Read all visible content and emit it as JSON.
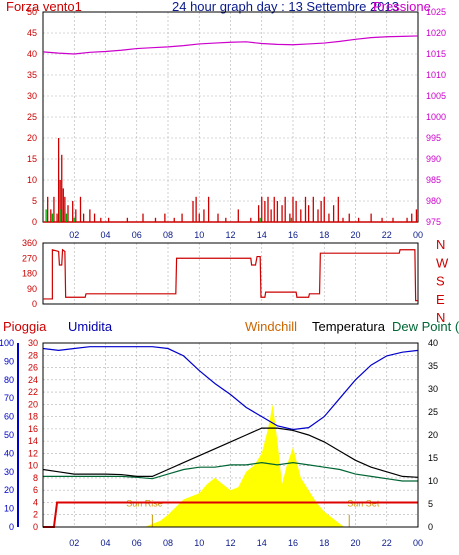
{
  "header": {
    "wind_label": "Forza vento1",
    "title": "24 hour graph day : 13 Settembre 2013",
    "pressure_label": "Pressione"
  },
  "legend": {
    "rain": "Pioggia",
    "humidity": "Umidita",
    "windchill": "Windchill",
    "temperature": "Temperatura",
    "dewpoint": "Dew Point (°C"
  },
  "markers": {
    "sunrise": "Sun Rise",
    "sunset": "Sun Set"
  },
  "colors": {
    "wind": "#cc0000",
    "gust": "#00aa00",
    "pressure": "#cc00cc",
    "humidity": "#0000cc",
    "temperature": "#000000",
    "dewpoint": "#006633",
    "windchill": "#cc6600",
    "rain": "#dd0000",
    "solar": "#ffff00",
    "grid": "#b0b0b0",
    "axis_dark": "#0a1a8a"
  },
  "chart_data": [
    {
      "type": "bar",
      "name": "wind",
      "x_ticks": [
        "02",
        "04",
        "06",
        "08",
        "10",
        "12",
        "14",
        "16",
        "18",
        "20",
        "22",
        "00"
      ],
      "xlim": [
        0,
        24
      ],
      "ylim_left": [
        0,
        50
      ],
      "yticks_left": [
        0,
        5,
        10,
        15,
        20,
        25,
        30,
        35,
        40,
        45,
        50
      ],
      "ylim_right": [
        975,
        1025
      ],
      "yticks_right": [
        975,
        980,
        985,
        990,
        995,
        1000,
        1005,
        1010,
        1015,
        1020,
        1025
      ],
      "wind_bars": [
        [
          0.3,
          6
        ],
        [
          0.5,
          3
        ],
        [
          0.7,
          6
        ],
        [
          0.9,
          2
        ],
        [
          1.0,
          20
        ],
        [
          1.1,
          10
        ],
        [
          1.2,
          16
        ],
        [
          1.3,
          8
        ],
        [
          1.4,
          6
        ],
        [
          1.6,
          4
        ],
        [
          1.9,
          5
        ],
        [
          2.1,
          3
        ],
        [
          2.4,
          6
        ],
        [
          2.6,
          2
        ],
        [
          3.0,
          3
        ],
        [
          3.3,
          2
        ],
        [
          3.7,
          1
        ],
        [
          4.2,
          1
        ],
        [
          5.4,
          1
        ],
        [
          6.4,
          2
        ],
        [
          7.2,
          1
        ],
        [
          7.8,
          2
        ],
        [
          8.4,
          1
        ],
        [
          8.9,
          2
        ],
        [
          9.6,
          5
        ],
        [
          9.8,
          6
        ],
        [
          10.0,
          2
        ],
        [
          10.3,
          3
        ],
        [
          10.6,
          6
        ],
        [
          11.2,
          2
        ],
        [
          11.7,
          1
        ],
        [
          12.5,
          3
        ],
        [
          13.3,
          1
        ],
        [
          13.8,
          4
        ],
        [
          14.0,
          6
        ],
        [
          14.2,
          5
        ],
        [
          14.4,
          6
        ],
        [
          14.6,
          3
        ],
        [
          14.8,
          6
        ],
        [
          15.0,
          5
        ],
        [
          15.3,
          4
        ],
        [
          15.5,
          6
        ],
        [
          15.8,
          2
        ],
        [
          16.0,
          6
        ],
        [
          16.2,
          5
        ],
        [
          16.5,
          3
        ],
        [
          16.8,
          6
        ],
        [
          17.0,
          4
        ],
        [
          17.3,
          6
        ],
        [
          17.6,
          3
        ],
        [
          17.8,
          5
        ],
        [
          18.0,
          6
        ],
        [
          18.3,
          2
        ],
        [
          18.6,
          4
        ],
        [
          18.9,
          6
        ],
        [
          19.2,
          1
        ],
        [
          19.6,
          2
        ],
        [
          20.2,
          1
        ],
        [
          21.0,
          2
        ],
        [
          21.7,
          1
        ],
        [
          22.4,
          1
        ],
        [
          23.3,
          1
        ],
        [
          23.6,
          2
        ],
        [
          23.9,
          3
        ]
      ],
      "gust_bars": [
        [
          0.2,
          3
        ],
        [
          0.6,
          2
        ],
        [
          1.1,
          3
        ],
        [
          1.5,
          2
        ],
        [
          2.0,
          1
        ],
        [
          13.9,
          1
        ],
        [
          15.9,
          1
        ]
      ],
      "pressure": [
        [
          0,
          1015.5
        ],
        [
          1,
          1015.2
        ],
        [
          2,
          1015.0
        ],
        [
          3,
          1015.4
        ],
        [
          4,
          1015.6
        ],
        [
          5,
          1015.9
        ],
        [
          6,
          1016.3
        ],
        [
          7,
          1016.5
        ],
        [
          8,
          1016.7
        ],
        [
          9,
          1017.0
        ],
        [
          10,
          1017.4
        ],
        [
          11,
          1017.6
        ],
        [
          12,
          1017.8
        ],
        [
          13,
          1017.9
        ],
        [
          14,
          1017.5
        ],
        [
          15,
          1017.3
        ],
        [
          16,
          1017.2
        ],
        [
          17,
          1017.4
        ],
        [
          18,
          1017.6
        ],
        [
          19,
          1018.0
        ],
        [
          20,
          1018.5
        ],
        [
          21,
          1018.9
        ],
        [
          22,
          1019.1
        ],
        [
          23,
          1019.2
        ],
        [
          24,
          1019.3
        ]
      ]
    },
    {
      "type": "line",
      "name": "wind_direction",
      "xlim": [
        0,
        24
      ],
      "ylim_left": [
        0,
        360
      ],
      "yticks_left": [
        0,
        30,
        60,
        90,
        120,
        150,
        180,
        210,
        240,
        270,
        300,
        330,
        360
      ],
      "right_labels": [
        "N",
        "W",
        "S",
        "E",
        "N"
      ],
      "direction": [
        [
          0,
          30
        ],
        [
          0.6,
          30
        ],
        [
          0.6,
          320
        ],
        [
          1.0,
          310
        ],
        [
          1.05,
          230
        ],
        [
          1.2,
          230
        ],
        [
          1.25,
          320
        ],
        [
          1.4,
          310
        ],
        [
          1.45,
          40
        ],
        [
          2.0,
          40
        ],
        [
          2.7,
          40
        ],
        [
          2.75,
          60
        ],
        [
          8.5,
          60
        ],
        [
          8.55,
          270
        ],
        [
          13.3,
          270
        ],
        [
          13.35,
          230
        ],
        [
          13.6,
          230
        ],
        [
          13.7,
          280
        ],
        [
          13.9,
          280
        ],
        [
          13.95,
          40
        ],
        [
          14.2,
          40
        ],
        [
          14.25,
          70
        ],
        [
          16.2,
          70
        ],
        [
          16.25,
          40
        ],
        [
          17.0,
          40
        ],
        [
          17.05,
          60
        ],
        [
          17.7,
          60
        ],
        [
          17.75,
          300
        ],
        [
          22.8,
          300
        ],
        [
          22.85,
          320
        ],
        [
          23.8,
          320
        ],
        [
          23.85,
          20
        ],
        [
          24,
          20
        ]
      ]
    },
    {
      "type": "line",
      "name": "temperature_humidity",
      "xlim": [
        0,
        24
      ],
      "ylim_left": [
        0,
        100
      ],
      "yticks_left": [
        0,
        10,
        20,
        30,
        40,
        50,
        60,
        70,
        80,
        90,
        100
      ],
      "ylim_mid": [
        0,
        30
      ],
      "yticks_mid": [
        0,
        2,
        4,
        6,
        8,
        10,
        12,
        14,
        16,
        18,
        20,
        22,
        24,
        26,
        28,
        30
      ],
      "ylim_right": [
        0,
        40
      ],
      "yticks_right": [
        0,
        5,
        10,
        15,
        20,
        25,
        30,
        35,
        40
      ],
      "humidity": [
        [
          0,
          97
        ],
        [
          1,
          96
        ],
        [
          2,
          97
        ],
        [
          3,
          98
        ],
        [
          4,
          98
        ],
        [
          5,
          98
        ],
        [
          6,
          98
        ],
        [
          7,
          98
        ],
        [
          8,
          97
        ],
        [
          9,
          93
        ],
        [
          10,
          85
        ],
        [
          11,
          78
        ],
        [
          12,
          72
        ],
        [
          13,
          65
        ],
        [
          14,
          60
        ],
        [
          15,
          55
        ],
        [
          16,
          53
        ],
        [
          17,
          54
        ],
        [
          18,
          60
        ],
        [
          19,
          70
        ],
        [
          20,
          80
        ],
        [
          21,
          88
        ],
        [
          22,
          93
        ],
        [
          23,
          95
        ],
        [
          24,
          96
        ]
      ],
      "temperature": [
        [
          0,
          12.5
        ],
        [
          1,
          12
        ],
        [
          2,
          11.5
        ],
        [
          3,
          11.5
        ],
        [
          4,
          11.5
        ],
        [
          5,
          11.4
        ],
        [
          6,
          11
        ],
        [
          7,
          11
        ],
        [
          8,
          12.5
        ],
        [
          9,
          14
        ],
        [
          10,
          15.5
        ],
        [
          11,
          17
        ],
        [
          12,
          18.5
        ],
        [
          13,
          20
        ],
        [
          14,
          21.5
        ],
        [
          15,
          21.5
        ],
        [
          16,
          21
        ],
        [
          17,
          20
        ],
        [
          18,
          18.5
        ],
        [
          19,
          16.5
        ],
        [
          20,
          14.5
        ],
        [
          21,
          13
        ],
        [
          22,
          12
        ],
        [
          23,
          11
        ],
        [
          24,
          10.8
        ]
      ],
      "dewpoint": [
        [
          0,
          11
        ],
        [
          1,
          11
        ],
        [
          2,
          11
        ],
        [
          3,
          11
        ],
        [
          4,
          11
        ],
        [
          5,
          11
        ],
        [
          6,
          10.8
        ],
        [
          7,
          10.5
        ],
        [
          8,
          11.5
        ],
        [
          9,
          12.5
        ],
        [
          10,
          13
        ],
        [
          11,
          13
        ],
        [
          12,
          13.5
        ],
        [
          13,
          13.5
        ],
        [
          14,
          14
        ],
        [
          15,
          13.5
        ],
        [
          16,
          14
        ],
        [
          17,
          13.5
        ],
        [
          18,
          13
        ],
        [
          19,
          12.5
        ],
        [
          20,
          11.5
        ],
        [
          21,
          11
        ],
        [
          22,
          10.5
        ],
        [
          23,
          10
        ],
        [
          24,
          10
        ]
      ],
      "rain": [
        [
          0,
          0
        ],
        [
          0.7,
          0
        ],
        [
          0.9,
          4
        ],
        [
          24,
          4
        ]
      ],
      "solar": [
        [
          0,
          0
        ],
        [
          6.5,
          0
        ],
        [
          7,
          0.5
        ],
        [
          7.5,
          1
        ],
        [
          8,
          2
        ],
        [
          9,
          4.5
        ],
        [
          9.5,
          5
        ],
        [
          10,
          5.5
        ],
        [
          10.5,
          7
        ],
        [
          11,
          8
        ],
        [
          11.5,
          7
        ],
        [
          12,
          6
        ],
        [
          12.5,
          6.5
        ],
        [
          13,
          9
        ],
        [
          13.5,
          10
        ],
        [
          14,
          12
        ],
        [
          14.4,
          16
        ],
        [
          14.7,
          20
        ],
        [
          15,
          14
        ],
        [
          15.3,
          7
        ],
        [
          15.6,
          10
        ],
        [
          16,
          13
        ],
        [
          16.2,
          11
        ],
        [
          16.5,
          8
        ],
        [
          17,
          6
        ],
        [
          17.5,
          4
        ],
        [
          18,
          2.5
        ],
        [
          18.5,
          1.5
        ],
        [
          19,
          0.5
        ],
        [
          19.3,
          0
        ],
        [
          24,
          0
        ]
      ],
      "sunrise_hour": 7,
      "sunset_hour": 19.6,
      "sun_labels_hours": {
        "rise": 6.5,
        "set": 20.5
      }
    }
  ]
}
